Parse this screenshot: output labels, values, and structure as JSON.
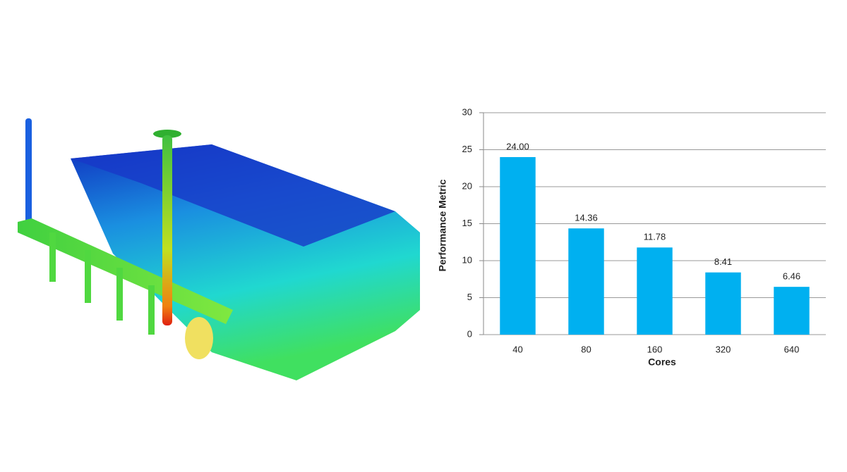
{
  "chart_data": {
    "type": "bar",
    "categories": [
      "40",
      "80",
      "160",
      "320",
      "640"
    ],
    "values": [
      24.0,
      14.36,
      11.78,
      8.41,
      6.46
    ],
    "value_labels": [
      "24.00",
      "14.36",
      "11.78",
      "8.41",
      "6.46"
    ],
    "color": "#00b0f0",
    "x_label": "Cores",
    "y_label": "Performance Metric",
    "ylim": [
      0,
      30
    ],
    "yticks": [
      0,
      5,
      10,
      15,
      20,
      25,
      30
    ],
    "grid": true
  }
}
